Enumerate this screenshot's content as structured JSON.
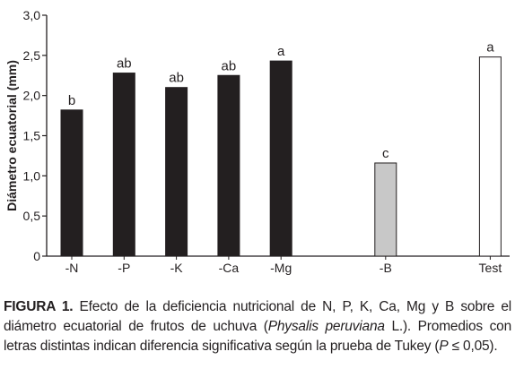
{
  "chart_data": {
    "type": "bar",
    "categories": [
      "-N",
      "-P",
      "-K",
      "-Ca",
      "-Mg",
      "-B",
      "Test"
    ],
    "values": [
      1.82,
      2.28,
      2.1,
      2.25,
      2.43,
      1.16,
      2.48
    ],
    "significance_letters": [
      "b",
      "ab",
      "ab",
      "ab",
      "a",
      "c",
      "a"
    ],
    "bar_colors": [
      "#231f20",
      "#231f20",
      "#231f20",
      "#231f20",
      "#231f20",
      "#c8c8c8",
      "#ffffff"
    ],
    "x_positions": [
      1,
      2,
      3,
      4,
      5,
      7,
      9
    ],
    "ylabel": "Diámetro ecuatorial (mm)",
    "xlabel": "",
    "ylim": [
      0,
      3.0
    ],
    "yticks": [
      0,
      0.5,
      1.0,
      1.5,
      2.0,
      2.5,
      3.0
    ],
    "ytick_labels": [
      "0",
      "0,5",
      "1,0",
      "1,5",
      "2,0",
      "2,5",
      "3,0"
    ],
    "grid": false,
    "legend": "none"
  },
  "caption": {
    "label": "FIGURA 1.",
    "text_before_italic": " Efecto de la deficiencia nutricional de N, P, K, Ca, Mg y B sobre el diámetro ecuatorial de frutos de uchuva (",
    "italic_species": "Physalis peruviana",
    "text_after_italic": " L.). Promedios con letras distintas indican diferencia significativa según la prueba de Tukey (",
    "italic_p": "P",
    "text_end": " ≤ 0,05)."
  }
}
